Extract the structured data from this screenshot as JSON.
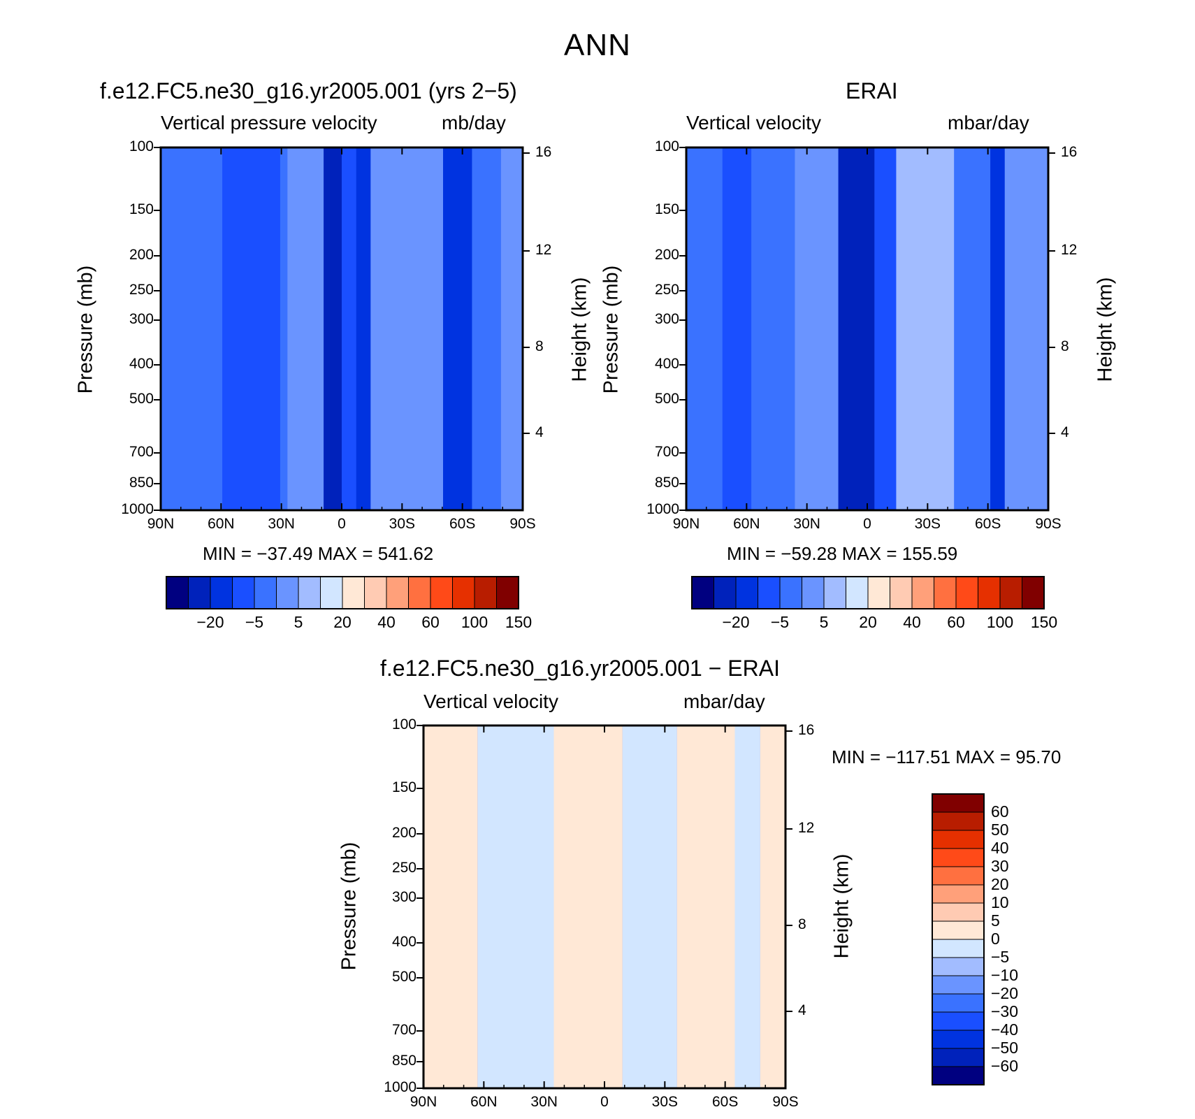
{
  "page": {
    "title": "ANN"
  },
  "chart_data": [
    {
      "type": "heatmap",
      "title": "f.e12.FC5.ne30_g16.yr2005.001 (yrs 2−5)",
      "left_label": "Vertical pressure velocity",
      "right_label": "mb/day",
      "ylabel": "Pressure (mb)",
      "y2label": "Height (km)",
      "x_ticks": [
        "90N",
        "60N",
        "30N",
        "0",
        "30S",
        "60S",
        "90S"
      ],
      "y_ticks": [
        "100",
        "150",
        "200",
        "250",
        "300",
        "400",
        "500",
        "700",
        "850",
        "1000"
      ],
      "y2_ticks": [
        "16",
        "12",
        "8",
        "4"
      ],
      "stats": "MIN = −37.49   MAX = 541.62",
      "colorbar_labels": [
        "−20",
        "−5",
        "5",
        "20",
        "40",
        "60",
        "100",
        "150"
      ],
      "bands": [
        {
          "x0": 0.0,
          "x1": 0.17,
          "level": 4
        },
        {
          "x0": 0.17,
          "x1": 0.33,
          "level": 3
        },
        {
          "x0": 0.33,
          "x1": 0.35,
          "level": 4
        },
        {
          "x0": 0.35,
          "x1": 0.45,
          "level": 5
        },
        {
          "x0": 0.45,
          "x1": 0.5,
          "level": 1
        },
        {
          "x0": 0.5,
          "x1": 0.54,
          "level": 3
        },
        {
          "x0": 0.54,
          "x1": 0.58,
          "level": 2
        },
        {
          "x0": 0.58,
          "x1": 0.78,
          "level": 5
        },
        {
          "x0": 0.78,
          "x1": 0.86,
          "level": 2
        },
        {
          "x0": 0.86,
          "x1": 0.94,
          "level": 4
        },
        {
          "x0": 0.94,
          "x1": 1.0,
          "level": 5
        }
      ]
    },
    {
      "type": "heatmap",
      "title": "ERAI",
      "left_label": "Vertical velocity",
      "right_label": "mbar/day",
      "ylabel": "Pressure (mb)",
      "y2label": "Height (km)",
      "x_ticks": [
        "90N",
        "60N",
        "30N",
        "0",
        "30S",
        "60S",
        "90S"
      ],
      "y_ticks": [
        "100",
        "150",
        "200",
        "250",
        "300",
        "400",
        "500",
        "700",
        "850",
        "1000"
      ],
      "y2_ticks": [
        "16",
        "12",
        "8",
        "4"
      ],
      "stats": "MIN = −59.28   MAX = 155.59",
      "colorbar_labels": [
        "−20",
        "−5",
        "5",
        "20",
        "40",
        "60",
        "100",
        "150"
      ],
      "bands": [
        {
          "x0": 0.0,
          "x1": 0.1,
          "level": 4
        },
        {
          "x0": 0.1,
          "x1": 0.18,
          "level": 3
        },
        {
          "x0": 0.18,
          "x1": 0.3,
          "level": 4
        },
        {
          "x0": 0.3,
          "x1": 0.42,
          "level": 5
        },
        {
          "x0": 0.42,
          "x1": 0.52,
          "level": 1
        },
        {
          "x0": 0.52,
          "x1": 0.58,
          "level": 3
        },
        {
          "x0": 0.58,
          "x1": 0.74,
          "level": 6
        },
        {
          "x0": 0.74,
          "x1": 0.84,
          "level": 4
        },
        {
          "x0": 0.84,
          "x1": 0.88,
          "level": 2
        },
        {
          "x0": 0.88,
          "x1": 1.0,
          "level": 5
        }
      ]
    },
    {
      "type": "heatmap",
      "title": "f.e12.FC5.ne30_g16.yr2005.001 − ERAI",
      "left_label": "Vertical velocity",
      "right_label": "mbar/day",
      "ylabel": "Pressure (mb)",
      "y2label": "Height (km)",
      "x_ticks": [
        "90N",
        "60N",
        "30N",
        "0",
        "30S",
        "60S",
        "90S"
      ],
      "y_ticks": [
        "100",
        "150",
        "200",
        "250",
        "300",
        "400",
        "500",
        "700",
        "850",
        "1000"
      ],
      "y2_ticks": [
        "16",
        "12",
        "8",
        "4"
      ],
      "stats": "MIN = −117.51   MAX =   95.70",
      "colorbar_labels": [
        "60",
        "50",
        "40",
        "30",
        "20",
        "10",
        "5",
        "0",
        "−5",
        "−10",
        "−20",
        "−30",
        "−40",
        "−50",
        "−60"
      ],
      "bands": [
        {
          "x0": 0.0,
          "x1": 0.15,
          "level": "pos"
        },
        {
          "x0": 0.15,
          "x1": 0.36,
          "level": "neg"
        },
        {
          "x0": 0.36,
          "x1": 0.55,
          "level": "pos"
        },
        {
          "x0": 0.55,
          "x1": 0.7,
          "level": "neg"
        },
        {
          "x0": 0.7,
          "x1": 0.86,
          "level": "pos"
        },
        {
          "x0": 0.86,
          "x1": 0.93,
          "level": "neg"
        },
        {
          "x0": 0.93,
          "x1": 1.0,
          "level": "pos"
        }
      ]
    }
  ],
  "colors": {
    "main_scale": [
      "#000080",
      "#0022bb",
      "#0033e0",
      "#1a4fff",
      "#3a72ff",
      "#6a94ff",
      "#a2bcff",
      "#d2e6ff",
      "#ffe8d6",
      "#ffcbb3",
      "#ffa07a",
      "#ff7040",
      "#ff4a18",
      "#e63000",
      "#b81d00",
      "#800000"
    ],
    "diff_scale_top_to_bottom": [
      "#800000",
      "#b81d00",
      "#e63000",
      "#ff4a18",
      "#ff7040",
      "#ffa07a",
      "#ffcbb3",
      "#ffe8d6",
      "#d2e6ff",
      "#a2bcff",
      "#6a94ff",
      "#3a72ff",
      "#1a4fff",
      "#0033e0",
      "#0022bb",
      "#000080"
    ]
  }
}
